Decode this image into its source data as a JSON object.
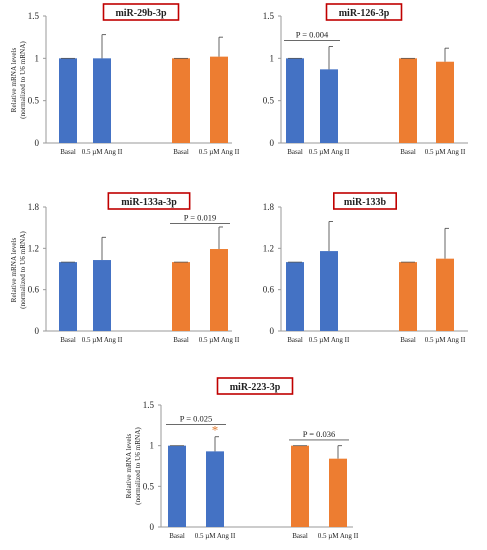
{
  "figure": {
    "ylabel_line1": "Relative mRNA levels",
    "ylabel_line2": "(normalized to U6 mRNA)"
  },
  "colors": {
    "basal_control": "#4472C4",
    "ang_ii": "#ED7D31",
    "title_border": "#C00000",
    "significance_star": "#E07A2E"
  },
  "chart_data": [
    {
      "type": "bar",
      "title": "miR-29b-3p",
      "categories": [
        "Basal",
        "0.5 µM Ang II",
        "Basal",
        "0.5 µM Ang II"
      ],
      "bar_colors": [
        "basal_control",
        "basal_control",
        "ang_ii",
        "ang_ii"
      ],
      "values": [
        1.0,
        1.0,
        1.0,
        1.02
      ],
      "error": [
        0.0,
        0.28,
        0.0,
        0.23
      ],
      "ylim": [
        0,
        1.5
      ],
      "yticks": [
        0,
        0.5,
        1,
        1.5
      ],
      "ytick_labels": [
        "0",
        "0.5",
        "1",
        "1.5"
      ],
      "ylabel": "Relative mRNA levels (normalized to U6 mRNA)",
      "xlabel": "",
      "annotations": []
    },
    {
      "type": "bar",
      "title": "miR-126-3p",
      "categories": [
        "Basal",
        "0.5 µM Ang II",
        "Basal",
        "0.5 µM Ang II"
      ],
      "bar_colors": [
        "basal_control",
        "basal_control",
        "ang_ii",
        "ang_ii"
      ],
      "values": [
        1.0,
        0.87,
        1.0,
        0.96
      ],
      "error": [
        0.0,
        0.27,
        0.0,
        0.16
      ],
      "ylim": [
        0,
        1.5
      ],
      "yticks": [
        0,
        0.5,
        1,
        1.5
      ],
      "ytick_labels": [
        "0",
        "0.5",
        "1",
        "1.5"
      ],
      "ylabel": "",
      "xlabel": "",
      "annotations": [
        {
          "text": "P = 0.004",
          "from": 0,
          "to": 1,
          "y": 1.21
        }
      ]
    },
    {
      "type": "bar",
      "title": "miR-133a-3p",
      "categories": [
        "Basal",
        "0.5 µM Ang II",
        "Basal",
        "0.5 µM Ang II"
      ],
      "bar_colors": [
        "basal_control",
        "basal_control",
        "ang_ii",
        "ang_ii"
      ],
      "values": [
        1.0,
        1.03,
        1.0,
        1.19
      ],
      "error": [
        0.0,
        0.33,
        0.0,
        0.32
      ],
      "ylim": [
        0,
        1.8
      ],
      "yticks": [
        0,
        0.6,
        1.2,
        1.8
      ],
      "ytick_labels": [
        "0",
        "0.6",
        "1.2",
        "1.8"
      ],
      "ylabel": "Relative mRNA levels (normalized to U6 mRNA)",
      "xlabel": "",
      "annotations": [
        {
          "text": "P = 0.019",
          "from": 2,
          "to": 3,
          "y": 1.56
        }
      ]
    },
    {
      "type": "bar",
      "title": "miR-133b",
      "categories": [
        "Basal",
        "0.5 µM Ang II",
        "Basal",
        "0.5 µM Ang II"
      ],
      "bar_colors": [
        "basal_control",
        "basal_control",
        "ang_ii",
        "ang_ii"
      ],
      "values": [
        1.0,
        1.16,
        1.0,
        1.05
      ],
      "error": [
        0.0,
        0.43,
        0.0,
        0.44
      ],
      "ylim": [
        0,
        1.8
      ],
      "yticks": [
        0,
        0.6,
        1.2,
        1.8
      ],
      "ytick_labels": [
        "0",
        "0.6",
        "1.2",
        "1.8"
      ],
      "ylabel": "",
      "xlabel": "",
      "annotations": []
    },
    {
      "type": "bar",
      "title": "miR-223-3p",
      "categories": [
        "Basal",
        "0.5 µM Ang II",
        "Basal",
        "0.5 µM Ang II"
      ],
      "bar_colors": [
        "basal_control",
        "basal_control",
        "ang_ii",
        "ang_ii"
      ],
      "values": [
        1.0,
        0.93,
        1.0,
        0.84
      ],
      "error": [
        0.0,
        0.18,
        0.0,
        0.16
      ],
      "ylim": [
        0,
        1.5
      ],
      "yticks": [
        0,
        0.5,
        1,
        1.5
      ],
      "ytick_labels": [
        "0",
        "0.5",
        "1",
        "1.5"
      ],
      "ylabel": "Relative mRNA levels (normalized to U6 mRNA)",
      "xlabel": "",
      "annotations": [
        {
          "text": "P = 0.025",
          "from": 0,
          "to": 1,
          "y": 1.26
        },
        {
          "text": "P = 0.036",
          "from": 2,
          "to": 3,
          "y": 1.07
        }
      ],
      "markers": [
        {
          "bar": 1,
          "text": "*"
        }
      ]
    }
  ]
}
